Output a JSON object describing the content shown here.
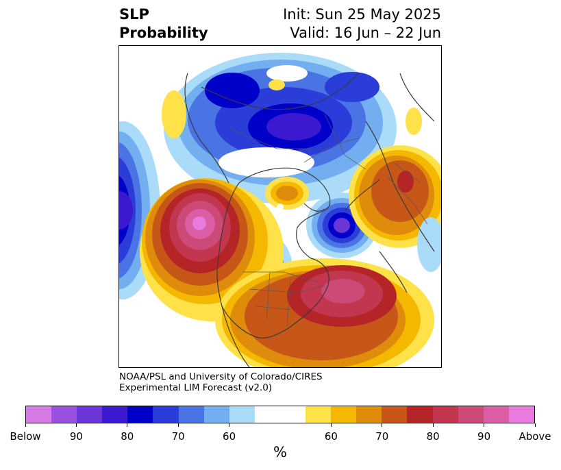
{
  "header": {
    "variable": "SLP",
    "product": "Probability",
    "init": "Init: Sun 25 May 2025",
    "valid": "Valid: 16 Jun – 22 Jun"
  },
  "credit": {
    "line1": "NOAA/PSL and University of Colorado/CIRES",
    "line2": "Experimental LIM Forecast (v2.0)"
  },
  "colorbar": {
    "unit": "%",
    "colors": [
      "#d67ae6",
      "#9a50e0",
      "#6b35d8",
      "#3c19d0",
      "#0000c8",
      "#2a3dd8",
      "#4a74e4",
      "#72aef0",
      "#aadcfa",
      "#ffffff",
      "#ffffff",
      "#ffe24a",
      "#f4b800",
      "#df8b0c",
      "#c75718",
      "#b52427",
      "#c2364f",
      "#cc4a78",
      "#da5da6",
      "#e97ade"
    ],
    "tick_labels": [
      "Below",
      "90",
      "80",
      "70",
      "60",
      "60",
      "70",
      "80",
      "90",
      "Above"
    ]
  }
}
